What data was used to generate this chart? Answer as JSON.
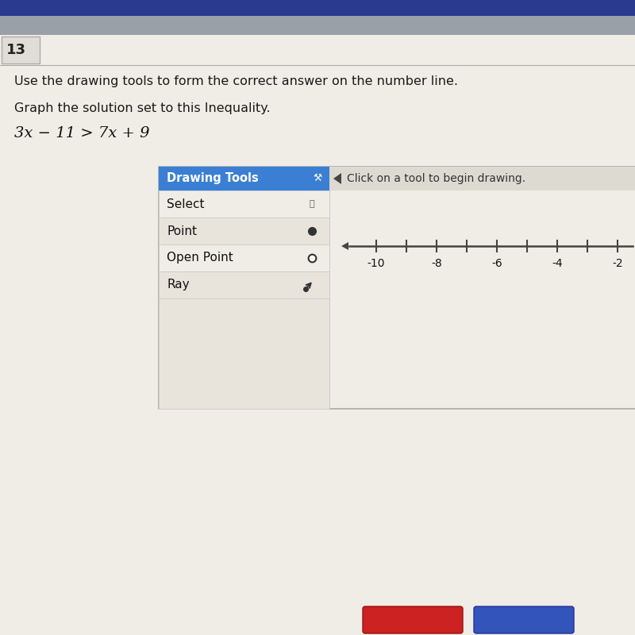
{
  "question_number": "13",
  "instruction_line1": "Use the drawing tools to form the correct answer on the number line.",
  "instruction_line2": "Graph the solution set to this Inequality.",
  "equation": "3x − 11 > 7x + 9",
  "drawing_tools_title": "Drawing Tools",
  "drawing_tools_items": [
    "Select",
    "Point",
    "Open Point",
    "Ray"
  ],
  "click_instruction": "Click on a tool to begin drawing.",
  "tick_vals": [
    -10,
    -9,
    -8,
    -7,
    -6,
    -5,
    -4,
    -3,
    -2
  ],
  "tick_labeled": [
    -10,
    -8,
    -6,
    -4,
    -2
  ],
  "bg_color": "#f0ede6",
  "top_navy_color": "#2a3a8f",
  "top_gray_color": "#9aa0a8",
  "num13_box_color": "#e0ddd6",
  "header_bg": "#3a7fd4",
  "header_text_color": "#ffffff",
  "row_bg_light": "#f0ede6",
  "row_bg_dark": "#e8e4dc",
  "right_panel_bg": "#f0ede6",
  "right_panel_header_bg": "#dddad2",
  "border_color": "#aaaaaa",
  "nl_color": "#444444",
  "bottom_red": "#cc2222",
  "bottom_blue": "#3355bb"
}
